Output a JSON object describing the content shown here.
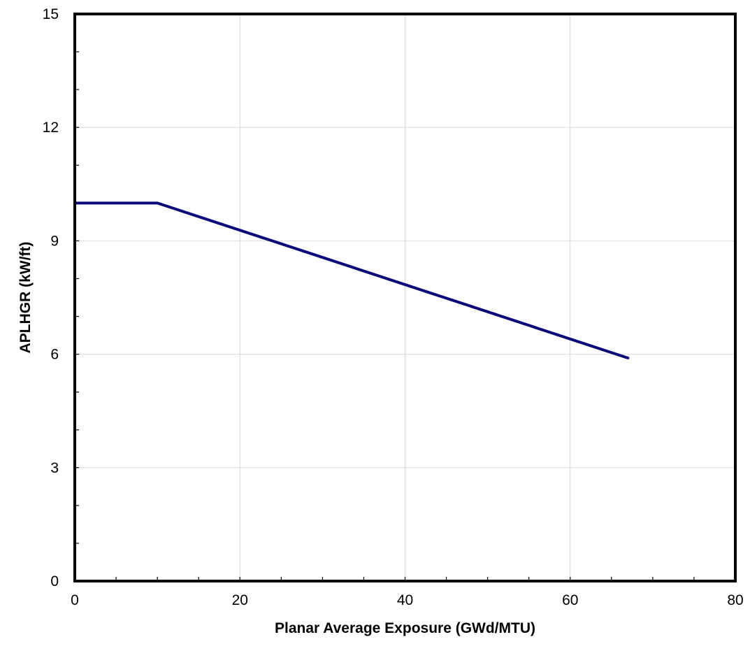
{
  "chart_data": {
    "type": "line",
    "title": "",
    "xlabel": "Planar Average Exposure (GWd/MTU)",
    "ylabel": "APLHGR (kW/ft)",
    "xlim": [
      0,
      80
    ],
    "ylim": [
      0,
      15
    ],
    "xticks": [
      "0",
      "20",
      "40",
      "60",
      "80"
    ],
    "yticks": [
      "0",
      "3",
      "6",
      "9",
      "12",
      "15"
    ],
    "xtick_values": [
      0,
      20,
      40,
      60,
      80
    ],
    "ytick_values": [
      0,
      3,
      6,
      9,
      12,
      15
    ],
    "grid": true,
    "series": [
      {
        "color": "#0a0a7a",
        "x": [
          0,
          10,
          67
        ],
        "y": [
          10.0,
          10.0,
          5.9
        ]
      }
    ]
  }
}
